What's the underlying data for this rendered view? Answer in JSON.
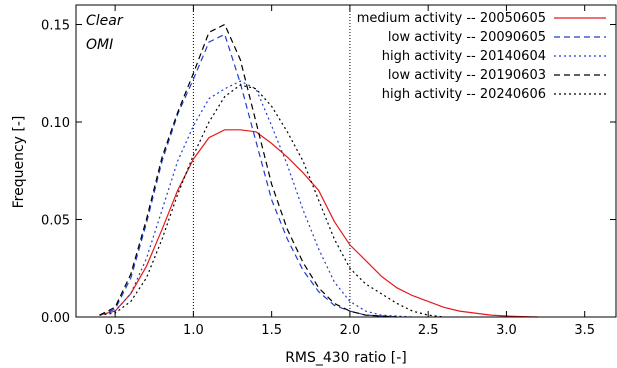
{
  "chart_data": {
    "type": "line",
    "xlabel": "RMS_430 ratio  [-]",
    "ylabel": "Frequency  [-]",
    "xlim": [
      0.25,
      3.7
    ],
    "ylim": [
      0,
      0.16
    ],
    "xticks": [
      "0.5",
      "1.0",
      "1.5",
      "2.0",
      "2.5",
      "3.0",
      "3.5"
    ],
    "yticks": [
      "0.00",
      "0.05",
      "0.10",
      "0.15"
    ],
    "grid": false,
    "legend_position": "top-right",
    "annotations": [
      "Clear",
      "OMI"
    ],
    "reference_lines_x": [
      1.0,
      2.0
    ],
    "series": [
      {
        "name": "medium activity -- 20050605",
        "color": "#e41a1c",
        "dash": "solid",
        "x": [
          0.4,
          0.5,
          0.6,
          0.7,
          0.8,
          0.9,
          1.0,
          1.1,
          1.2,
          1.3,
          1.4,
          1.5,
          1.6,
          1.7,
          1.8,
          1.9,
          2.0,
          2.1,
          2.2,
          2.3,
          2.4,
          2.5,
          2.6,
          2.7,
          2.8,
          2.9,
          3.0,
          3.1,
          3.2
        ],
        "y": [
          0.001,
          0.003,
          0.012,
          0.026,
          0.045,
          0.065,
          0.081,
          0.092,
          0.096,
          0.096,
          0.095,
          0.089,
          0.082,
          0.074,
          0.065,
          0.049,
          0.037,
          0.029,
          0.021,
          0.015,
          0.011,
          0.008,
          0.005,
          0.003,
          0.002,
          0.001,
          0.0005,
          0.0002,
          0.0
        ]
      },
      {
        "name": "low activity -- 20090605",
        "color": "#1f3fcf",
        "dash": "long",
        "x": [
          0.4,
          0.5,
          0.6,
          0.7,
          0.8,
          0.9,
          1.0,
          1.1,
          1.2,
          1.3,
          1.4,
          1.5,
          1.6,
          1.7,
          1.8,
          1.9,
          2.0,
          2.1,
          2.2,
          2.3
        ],
        "y": [
          0.001,
          0.004,
          0.02,
          0.048,
          0.08,
          0.104,
          0.122,
          0.141,
          0.145,
          0.12,
          0.09,
          0.06,
          0.04,
          0.024,
          0.013,
          0.006,
          0.003,
          0.001,
          0.0005,
          0.0
        ]
      },
      {
        "name": "high activity -- 20140604",
        "color": "#1f3fcf",
        "dash": "short",
        "x": [
          0.4,
          0.5,
          0.6,
          0.7,
          0.8,
          0.9,
          1.0,
          1.1,
          1.2,
          1.3,
          1.4,
          1.5,
          1.6,
          1.7,
          1.8,
          1.9,
          2.0,
          2.1,
          2.2,
          2.3,
          2.4
        ],
        "y": [
          0.001,
          0.003,
          0.012,
          0.03,
          0.055,
          0.08,
          0.098,
          0.112,
          0.117,
          0.121,
          0.117,
          0.098,
          0.078,
          0.055,
          0.035,
          0.018,
          0.008,
          0.003,
          0.001,
          0.0005,
          0.0
        ]
      },
      {
        "name": "low activity -- 20190603",
        "color": "#000000",
        "dash": "long",
        "x": [
          0.4,
          0.5,
          0.6,
          0.7,
          0.8,
          0.9,
          1.0,
          1.1,
          1.2,
          1.3,
          1.4,
          1.5,
          1.6,
          1.7,
          1.8,
          1.9,
          2.0,
          2.1,
          2.2,
          2.3
        ],
        "y": [
          0.001,
          0.005,
          0.022,
          0.05,
          0.082,
          0.105,
          0.125,
          0.146,
          0.15,
          0.132,
          0.1,
          0.068,
          0.045,
          0.028,
          0.015,
          0.007,
          0.003,
          0.001,
          0.0005,
          0.0
        ]
      },
      {
        "name": "high activity -- 20240606",
        "color": "#000000",
        "dash": "short",
        "x": [
          0.4,
          0.5,
          0.6,
          0.7,
          0.8,
          0.9,
          1.0,
          1.1,
          1.2,
          1.3,
          1.4,
          1.5,
          1.6,
          1.7,
          1.8,
          1.9,
          2.0,
          2.1,
          2.2,
          2.3,
          2.4,
          2.5,
          2.6
        ],
        "y": [
          0.001,
          0.002,
          0.008,
          0.02,
          0.04,
          0.063,
          0.083,
          0.1,
          0.113,
          0.119,
          0.117,
          0.108,
          0.095,
          0.08,
          0.06,
          0.04,
          0.025,
          0.017,
          0.012,
          0.007,
          0.003,
          0.001,
          0.0
        ]
      }
    ]
  }
}
